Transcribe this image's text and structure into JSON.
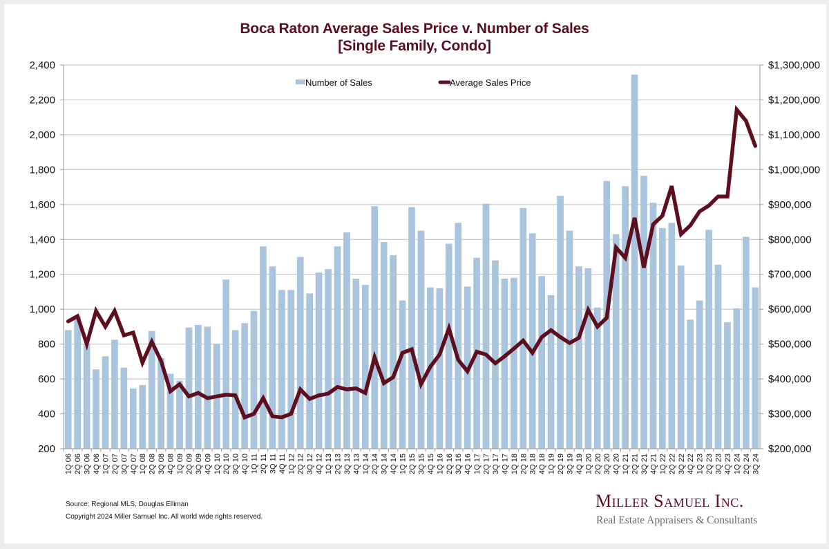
{
  "chart_data": {
    "type": "bar",
    "combo": "bar+line (dual axis)",
    "title": "Boca Raton Average Sales Price v. Number of Sales",
    "subtitle": "[Single Family, Condo]",
    "xlabel": "",
    "ylabel_left": "",
    "ylabel_right": "",
    "grid": true,
    "legend_position": "top-center",
    "categories": [
      "1Q 06",
      "2Q 06",
      "3Q 06",
      "4Q 06",
      "1Q 07",
      "2Q 07",
      "3Q 07",
      "4Q 07",
      "1Q 08",
      "2Q 08",
      "3Q 08",
      "4Q 08",
      "1Q 09",
      "2Q 09",
      "3Q 09",
      "4Q 09",
      "1Q 10",
      "2Q 10",
      "3Q 10",
      "4Q 10",
      "1Q 11",
      "2Q 11",
      "3Q 11",
      "4Q 11",
      "1Q 12",
      "2Q 12",
      "3Q 12",
      "4Q 12",
      "1Q 13",
      "2Q 13",
      "3Q 13",
      "4Q 13",
      "1Q 14",
      "2Q 14",
      "3Q 14",
      "4Q 14",
      "1Q 15",
      "2Q 15",
      "3Q 15",
      "4Q 15",
      "1Q 16",
      "2Q 16",
      "3Q 16",
      "4Q 16",
      "1Q 17",
      "2Q 17",
      "3Q 17",
      "4Q 17",
      "1Q 18",
      "2Q 18",
      "3Q 18",
      "4Q 18",
      "1Q 19",
      "2Q 19",
      "3Q 19",
      "4Q 19",
      "1Q 20",
      "2Q 20",
      "3Q 20",
      "4Q 20",
      "1Q 21",
      "2Q 21",
      "3Q 21",
      "4Q 21",
      "1Q 22",
      "2Q 22",
      "3Q 22",
      "4Q 22",
      "1Q 23",
      "2Q 23",
      "3Q 23",
      "4Q 23",
      "1Q 24",
      "2Q 24",
      "3Q 24"
    ],
    "series": [
      {
        "name": "Number of Sales",
        "type": "bar",
        "axis": "left",
        "color": "#a9c4dc",
        "values": [
          880,
          960,
          800,
          655,
          730,
          825,
          665,
          545,
          565,
          875,
          720,
          630,
          590,
          895,
          910,
          900,
          800,
          1170,
          880,
          920,
          990,
          1360,
          1245,
          1110,
          1110,
          1300,
          1090,
          1210,
          1230,
          1360,
          1440,
          1175,
          1140,
          1590,
          1385,
          1310,
          1050,
          1585,
          1450,
          1125,
          1120,
          1375,
          1495,
          1130,
          1295,
          1605,
          1280,
          1175,
          1180,
          1580,
          1435,
          1190,
          1080,
          1650,
          1450,
          1245,
          1235,
          1010,
          1735,
          1430,
          1705,
          2345,
          1765,
          1610,
          1465,
          1495,
          1250,
          940,
          1050,
          1455,
          1255,
          925,
          1005,
          1415,
          1125
        ]
      },
      {
        "name": "Average Sales Price",
        "type": "line",
        "axis": "right",
        "color": "#5e0f1f",
        "values": [
          565000,
          580000,
          500000,
          595000,
          550000,
          595000,
          525000,
          533000,
          447000,
          507000,
          452000,
          365000,
          385000,
          350000,
          360000,
          345000,
          350000,
          355000,
          353000,
          290000,
          300000,
          345000,
          293000,
          290000,
          300000,
          370000,
          343000,
          353000,
          358000,
          377000,
          370000,
          373000,
          360000,
          462000,
          388000,
          405000,
          475000,
          485000,
          385000,
          435000,
          470000,
          545000,
          455000,
          422000,
          478000,
          470000,
          445000,
          465000,
          487000,
          510000,
          475000,
          520000,
          540000,
          520000,
          503000,
          518000,
          598000,
          550000,
          575000,
          777000,
          747000,
          862000,
          719000,
          843000,
          868000,
          953000,
          815000,
          840000,
          880000,
          897000,
          923000,
          923000,
          1172000,
          1140000,
          1068000
        ]
      }
    ],
    "y_left": {
      "range": [
        200,
        2400
      ],
      "ticks": [
        "200",
        "400",
        "600",
        "800",
        "1,000",
        "1,200",
        "1,400",
        "1,600",
        "1,800",
        "2,000",
        "2,200",
        "2,400"
      ],
      "tick_values": [
        200,
        400,
        600,
        800,
        1000,
        1200,
        1400,
        1600,
        1800,
        2000,
        2200,
        2400
      ]
    },
    "y_right": {
      "range": [
        200000,
        1300000
      ],
      "ticks": [
        "$200,000",
        "$300,000",
        "$400,000",
        "$500,000",
        "$600,000",
        "$700,000",
        "$800,000",
        "$900,000",
        "$1,000,000",
        "$1,100,000",
        "$1,200,000",
        "$1,300,000"
      ],
      "tick_values": [
        200000,
        300000,
        400000,
        500000,
        600000,
        700000,
        800000,
        900000,
        1000000,
        1100000,
        1200000,
        1300000
      ]
    },
    "legend": [
      {
        "label": "Number of Sales",
        "marker": "bar"
      },
      {
        "label": "Average Sales Price",
        "marker": "line"
      }
    ]
  },
  "footer": {
    "source": "Source: Regional MLS, Douglas Elliman",
    "copyright": "Copyright 2024 Miller Samuel Inc.  All world wide rights reserved.",
    "brand_name": "Miller Samuel Inc.",
    "brand_tagline": "Real Estate Appraisers & Consultants"
  },
  "colors": {
    "title": "#5a0f1e",
    "bar": "#a9c4dc",
    "line": "#5e0f1f",
    "grid": "#bdbdbd"
  }
}
